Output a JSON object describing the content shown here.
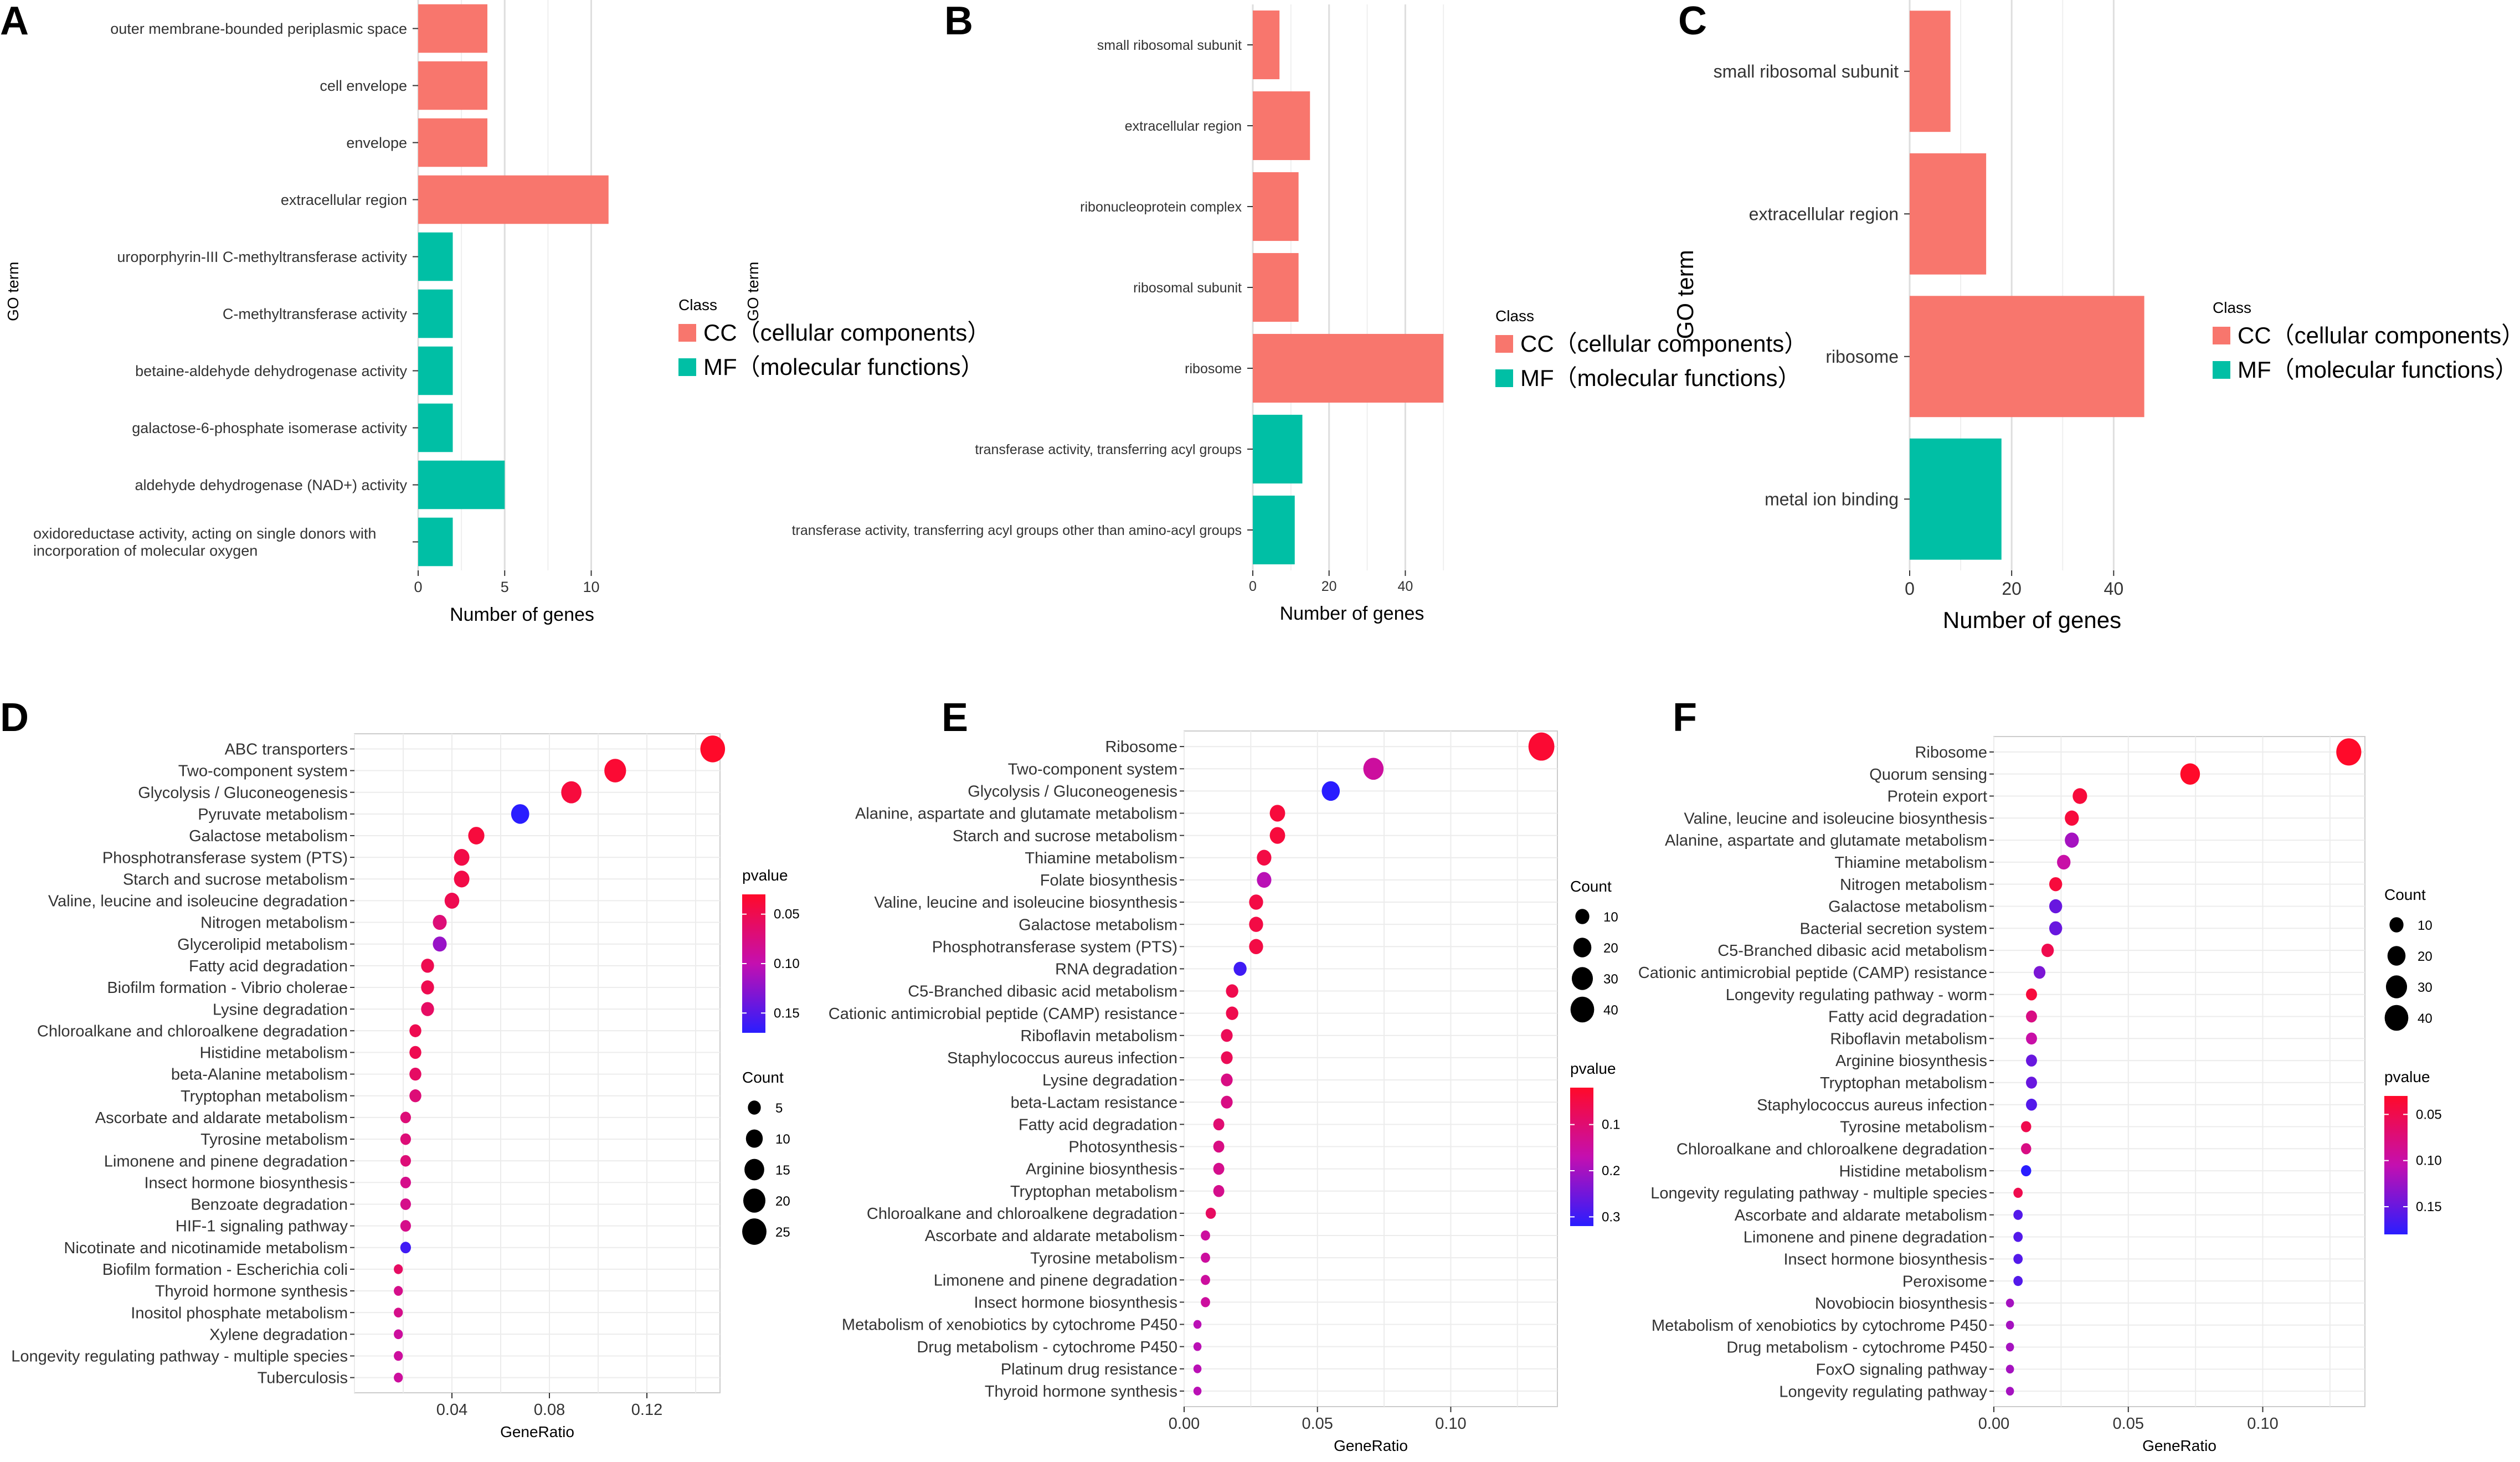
{
  "colors": {
    "cc": "#F8766D",
    "mf": "#00BFA5",
    "grid": "#e6e6e6",
    "plotbg": "#ffffff",
    "pv_high": "#ff0033",
    "pv_low": "#3322ff"
  },
  "chart_data": [
    {
      "id": "A",
      "type": "bar",
      "letter": "A",
      "xlabel": "Number of genes",
      "ylabel": "GO term",
      "xlim": [
        0,
        12
      ],
      "xticks": [
        0,
        5,
        10
      ],
      "categories": [
        "outer membrane-bounded periplasmic space",
        "cell envelope",
        "envelope",
        "extracellular region",
        "uroporphyrin-III C-methyltransferase activity",
        "C-methyltransferase activity",
        "betaine-aldehyde dehydrogenase activity",
        "galactose-6-phosphate isomerase activity",
        "aldehyde dehydrogenase (NAD+) activity",
        "oxidoreductase activity, acting on single donors with\nincorporation of molecular oxygen"
      ],
      "values": [
        4,
        4,
        4,
        11,
        2,
        2,
        2,
        2,
        5,
        2
      ],
      "classes": [
        "CC",
        "CC",
        "CC",
        "CC",
        "MF",
        "MF",
        "MF",
        "MF",
        "MF",
        "MF"
      ],
      "legend": {
        "title": "Class",
        "items": [
          {
            "key": "CC",
            "label": "CC（cellular components）"
          },
          {
            "key": "MF",
            "label": "MF（molecular functions）"
          }
        ]
      }
    },
    {
      "id": "B",
      "type": "bar",
      "letter": "B",
      "xlabel": "Number of genes",
      "ylabel": "GO term",
      "xlim": [
        0,
        52
      ],
      "xticks": [
        0,
        20,
        40
      ],
      "categories": [
        "small ribosomal subunit",
        "extracellular region",
        "ribonucleoprotein complex",
        "ribosomal subunit",
        "ribosome",
        "transferase activity, transferring acyl groups",
        "transferase activity, transferring acyl groups other than amino-acyl groups"
      ],
      "values": [
        7,
        15,
        12,
        12,
        50,
        13,
        11
      ],
      "classes": [
        "CC",
        "CC",
        "CC",
        "CC",
        "CC",
        "MF",
        "MF"
      ],
      "legend": {
        "title": "Class",
        "items": [
          {
            "key": "CC",
            "label": "CC（cellular components）"
          },
          {
            "key": "MF",
            "label": "MF（molecular functions）"
          }
        ]
      }
    },
    {
      "id": "C",
      "type": "bar",
      "letter": "C",
      "xlabel": "Number of genes",
      "ylabel": "GO term",
      "xlim": [
        0,
        48
      ],
      "xticks": [
        0,
        20,
        40
      ],
      "categories": [
        "small ribosomal subunit",
        "extracellular region",
        "ribosome",
        "metal ion binding"
      ],
      "values": [
        8,
        15,
        46,
        18
      ],
      "classes": [
        "CC",
        "CC",
        "CC",
        "MF"
      ],
      "legend": {
        "title": "Class",
        "items": [
          {
            "key": "CC",
            "label": "CC（cellular components）"
          },
          {
            "key": "MF",
            "label": "MF（molecular functions）"
          }
        ]
      }
    },
    {
      "id": "D",
      "type": "scatter",
      "letter": "D",
      "xlabel": "GeneRatio",
      "ylabel": "",
      "xlim": [
        0.0,
        0.15
      ],
      "xticks": [
        0.04,
        0.08,
        0.12
      ],
      "xtick_labels": [
        "0.04",
        "0.08",
        "0.12"
      ],
      "pvalue_range": [
        0.03,
        0.17
      ],
      "pvalue_ticks": [
        0.05,
        0.1,
        0.15
      ],
      "pvalue_tick_labels": [
        "0.05",
        "0.10",
        "0.15"
      ],
      "count_range": [
        1,
        28
      ],
      "count_ticks": [
        5,
        10,
        15,
        20,
        25
      ],
      "legend_order": [
        "pvalue",
        "count"
      ],
      "categories": [
        "ABC transporters",
        "Two-component system",
        "Glycolysis / Gluconeogenesis",
        "Pyruvate metabolism",
        "Galactose metabolism",
        "Phosphotransferase system (PTS)",
        "Starch and sucrose metabolism",
        "Valine, leucine and isoleucine degradation",
        "Nitrogen metabolism",
        "Glycerolipid metabolism",
        "Fatty acid degradation",
        "Biofilm formation - Vibrio cholerae",
        "Lysine degradation",
        "Chloroalkane and chloroalkene degradation",
        "Histidine metabolism",
        "beta-Alanine metabolism",
        "Tryptophan metabolism",
        "Ascorbate and aldarate metabolism",
        "Tyrosine metabolism",
        "Limonene and pinene degradation",
        "Insect hormone biosynthesis",
        "Benzoate degradation",
        "HIF-1 signaling pathway",
        "Nicotinate and nicotinamide metabolism",
        "Biofilm formation - Escherichia coli",
        "Thyroid hormone synthesis",
        "Inositol phosphate metabolism",
        "Xylene degradation",
        "Longevity regulating pathway - multiple species",
        "Tuberculosis"
      ],
      "x": [
        0.147,
        0.107,
        0.089,
        0.068,
        0.05,
        0.044,
        0.044,
        0.04,
        0.035,
        0.035,
        0.03,
        0.03,
        0.03,
        0.025,
        0.025,
        0.025,
        0.025,
        0.021,
        0.021,
        0.021,
        0.021,
        0.021,
        0.021,
        0.021,
        0.018,
        0.018,
        0.018,
        0.018,
        0.018,
        0.018
      ],
      "count": [
        26,
        19,
        16,
        12,
        9,
        8,
        8,
        7,
        6,
        6,
        5,
        5,
        5,
        4,
        4,
        4,
        4,
        3,
        3,
        3,
        3,
        3,
        3,
        3,
        2,
        2,
        2,
        2,
        2,
        2
      ],
      "pvalue": [
        0.03,
        0.035,
        0.04,
        0.17,
        0.04,
        0.045,
        0.045,
        0.05,
        0.07,
        0.12,
        0.05,
        0.05,
        0.06,
        0.05,
        0.05,
        0.06,
        0.07,
        0.07,
        0.07,
        0.07,
        0.08,
        0.08,
        0.08,
        0.16,
        0.06,
        0.08,
        0.08,
        0.09,
        0.09,
        0.09
      ]
    },
    {
      "id": "E",
      "type": "scatter",
      "letter": "E",
      "xlabel": "GeneRatio",
      "ylabel": "",
      "xlim": [
        0.0,
        0.14
      ],
      "xticks": [
        0.0,
        0.05,
        0.1
      ],
      "xtick_labels": [
        "0.00",
        "0.05",
        "0.10"
      ],
      "pvalue_range": [
        0.02,
        0.32
      ],
      "pvalue_ticks": [
        0.1,
        0.2,
        0.3
      ],
      "pvalue_tick_labels": [
        "0.1",
        "0.2",
        "0.3"
      ],
      "count_range": [
        1,
        48
      ],
      "count_ticks": [
        10,
        20,
        30,
        40
      ],
      "legend_order": [
        "count",
        "pvalue"
      ],
      "categories": [
        "Ribosome",
        "Two-component system",
        "Glycolysis / Gluconeogenesis",
        "Alanine, aspartate and glutamate metabolism",
        "Starch and sucrose metabolism",
        "Thiamine metabolism",
        "Folate biosynthesis",
        "Valine, leucine and isoleucine biosynthesis",
        "Galactose metabolism",
        "Phosphotransferase system (PTS)",
        "RNA degradation",
        "C5-Branched dibasic acid metabolism",
        "Cationic antimicrobial peptide (CAMP) resistance",
        "Riboflavin metabolism",
        "Staphylococcus aureus infection",
        "Lysine degradation",
        "beta-Lactam resistance",
        "Fatty acid degradation",
        "Photosynthesis",
        "Arginine biosynthesis",
        "Tryptophan metabolism",
        "Chloroalkane and chloroalkene degradation",
        "Ascorbate and aldarate metabolism",
        "Tyrosine metabolism",
        "Limonene and pinene degradation",
        "Insect hormone biosynthesis",
        "Metabolism of xenobiotics by cytochrome P450",
        "Drug metabolism - cytochrome P450",
        "Platinum drug resistance",
        "Thyroid hormone synthesis"
      ],
      "x": [
        0.134,
        0.071,
        0.055,
        0.035,
        0.035,
        0.03,
        0.03,
        0.027,
        0.027,
        0.027,
        0.021,
        0.018,
        0.018,
        0.016,
        0.016,
        0.016,
        0.016,
        0.013,
        0.013,
        0.013,
        0.013,
        0.01,
        0.008,
        0.008,
        0.008,
        0.008,
        0.005,
        0.005,
        0.005,
        0.005
      ],
      "count": [
        50,
        27,
        20,
        13,
        13,
        11,
        11,
        10,
        10,
        10,
        8,
        7,
        7,
        6,
        6,
        6,
        6,
        5,
        5,
        5,
        5,
        4,
        3,
        3,
        3,
        3,
        2,
        2,
        2,
        2
      ],
      "pvalue": [
        0.03,
        0.15,
        0.32,
        0.04,
        0.04,
        0.05,
        0.18,
        0.05,
        0.05,
        0.05,
        0.3,
        0.06,
        0.06,
        0.07,
        0.07,
        0.12,
        0.12,
        0.1,
        0.12,
        0.13,
        0.13,
        0.08,
        0.15,
        0.15,
        0.15,
        0.15,
        0.18,
        0.18,
        0.18,
        0.18
      ]
    },
    {
      "id": "F",
      "type": "scatter",
      "letter": "F",
      "xlabel": "GeneRatio",
      "ylabel": "",
      "xlim": [
        0.0,
        0.138
      ],
      "xticks": [
        0.0,
        0.05,
        0.1
      ],
      "xtick_labels": [
        "0.00",
        "0.05",
        "0.10"
      ],
      "pvalue_range": [
        0.03,
        0.18
      ],
      "pvalue_ticks": [
        0.05,
        0.1,
        0.15
      ],
      "pvalue_tick_labels": [
        "0.05",
        "0.10",
        "0.15"
      ],
      "count_range": [
        1,
        48
      ],
      "count_ticks": [
        10,
        20,
        30,
        40
      ],
      "legend_order": [
        "count",
        "pvalue"
      ],
      "categories": [
        "Ribosome",
        "Quorum sensing",
        "Protein export",
        "Valine, leucine and isoleucine biosynthesis",
        "Alanine, aspartate and glutamate metabolism",
        "Thiamine metabolism",
        "Nitrogen metabolism",
        "Galactose metabolism",
        "Bacterial secretion system",
        "C5-Branched dibasic acid metabolism",
        "Cationic antimicrobial peptide (CAMP) resistance",
        "Longevity regulating pathway - worm",
        "Fatty acid degradation",
        "Riboflavin metabolism",
        "Arginine biosynthesis",
        "Tryptophan metabolism",
        "Staphylococcus aureus infection",
        "Tyrosine metabolism",
        "Chloroalkane and chloroalkene degradation",
        "Histidine metabolism",
        "Longevity regulating pathway - multiple species",
        "Ascorbate and aldarate metabolism",
        "Limonene and pinene degradation",
        "Insect hormone biosynthesis",
        "Peroxisome",
        "Novobiocin biosynthesis",
        "Metabolism of xenobiotics by cytochrome P450",
        "Drug metabolism - cytochrome P450",
        "FoxO signaling pathway",
        "Longevity regulating pathway"
      ],
      "x": [
        0.132,
        0.073,
        0.032,
        0.029,
        0.029,
        0.026,
        0.023,
        0.023,
        0.023,
        0.02,
        0.017,
        0.014,
        0.014,
        0.014,
        0.014,
        0.014,
        0.014,
        0.012,
        0.012,
        0.012,
        0.009,
        0.009,
        0.009,
        0.009,
        0.009,
        0.006,
        0.006,
        0.006,
        0.006,
        0.006
      ],
      "count": [
        46,
        25,
        11,
        10,
        10,
        9,
        8,
        8,
        8,
        7,
        6,
        5,
        5,
        5,
        5,
        5,
        5,
        4,
        4,
        4,
        3,
        3,
        3,
        3,
        3,
        2,
        2,
        2,
        2,
        2
      ],
      "pvalue": [
        0.03,
        0.03,
        0.04,
        0.04,
        0.12,
        0.1,
        0.04,
        0.15,
        0.15,
        0.05,
        0.14,
        0.04,
        0.08,
        0.1,
        0.15,
        0.15,
        0.16,
        0.05,
        0.08,
        0.18,
        0.05,
        0.16,
        0.16,
        0.16,
        0.16,
        0.12,
        0.12,
        0.12,
        0.12,
        0.12
      ]
    }
  ],
  "legend_titles": {
    "count": "Count",
    "pvalue": "pvalue"
  }
}
